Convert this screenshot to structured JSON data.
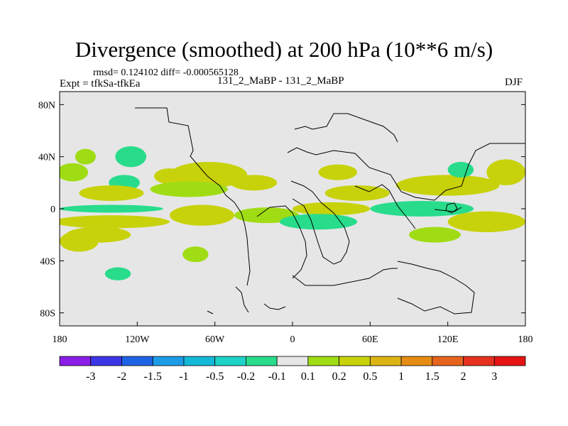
{
  "chart_data": {
    "type": "heatmap",
    "title": "Divergence (smoothed) at 200 hPa (10**6 m/s)",
    "stats_text": "rmsd= 0.124102 diff= -0.000565128",
    "expt_text": "Expt = tfkSa-tfkEa",
    "case_text": "131_2_MaBP - 131_2_MaBP",
    "season": "DJF",
    "x_ticks": [
      "180",
      "120W",
      "60W",
      "0",
      "60E",
      "120E",
      "180"
    ],
    "y_ticks": [
      "80N",
      "40N",
      "0",
      "40S",
      "80S"
    ],
    "xlim": [
      -180,
      180
    ],
    "ylim": [
      -90,
      90
    ],
    "colorbar_labels": [
      "-3",
      "-2",
      "-1.5",
      "-1",
      "-0.5",
      "-0.2",
      "-0.1",
      "0.1",
      "0.2",
      "0.5",
      "1",
      "1.5",
      "2",
      "3"
    ],
    "colorbar_colors": [
      "#8a1ee6",
      "#3c37e6",
      "#1e64e6",
      "#1e9be6",
      "#14b9d7",
      "#1ed2c8",
      "#28dc8c",
      "#e6e6e6",
      "#a0dc14",
      "#c8d20a",
      "#dcb414",
      "#e68c14",
      "#e6641e",
      "#e6321e",
      "#e61414"
    ],
    "field_blobs": [
      {
        "lon": -170,
        "lat": 28,
        "rlon": 12,
        "rlat": 7,
        "value": 0.15
      },
      {
        "lon": -130,
        "lat": 20,
        "rlon": 12,
        "rlat": 6,
        "value": -0.15
      },
      {
        "lon": -65,
        "lat": 26,
        "rlon": 30,
        "rlat": 10,
        "value": 0.2
      },
      {
        "lon": -95,
        "lat": 25,
        "rlon": 12,
        "rlat": 6,
        "value": 0.3
      },
      {
        "lon": -30,
        "lat": 20,
        "rlon": 18,
        "rlat": 6,
        "value": 0.2
      },
      {
        "lon": -140,
        "lat": 12,
        "rlon": 25,
        "rlat": 6,
        "value": 0.2
      },
      {
        "lon": -80,
        "lat": 15,
        "rlon": 30,
        "rlat": 6,
        "value": 0.15
      },
      {
        "lon": -140,
        "lat": 0,
        "rlon": 40,
        "rlat": 3,
        "value": -0.15
      },
      {
        "lon": -140,
        "lat": -10,
        "rlon": 45,
        "rlat": 5,
        "value": 0.2
      },
      {
        "lon": -70,
        "lat": -5,
        "rlon": 25,
        "rlat": 8,
        "value": 0.2
      },
      {
        "lon": -20,
        "lat": -5,
        "rlon": 25,
        "rlat": 6,
        "value": 0.15
      },
      {
        "lon": -150,
        "lat": -20,
        "rlon": 25,
        "rlat": 6,
        "value": 0.2
      },
      {
        "lon": 30,
        "lat": 0,
        "rlon": 30,
        "rlat": 5,
        "value": 0.2
      },
      {
        "lon": 20,
        "lat": -10,
        "rlon": 30,
        "rlat": 6,
        "value": -0.15
      },
      {
        "lon": 50,
        "lat": 12,
        "rlon": 25,
        "rlat": 6,
        "value": 0.2
      },
      {
        "lon": 100,
        "lat": 0,
        "rlon": 40,
        "rlat": 6,
        "value": -0.15
      },
      {
        "lon": 120,
        "lat": 18,
        "rlon": 40,
        "rlat": 8,
        "value": 0.2
      },
      {
        "lon": 150,
        "lat": -10,
        "rlon": 30,
        "rlat": 8,
        "value": 0.2
      },
      {
        "lon": 110,
        "lat": -20,
        "rlon": 20,
        "rlat": 6,
        "value": 0.15
      },
      {
        "lon": 35,
        "lat": 28,
        "rlon": 15,
        "rlat": 6,
        "value": 0.2
      },
      {
        "lon": 165,
        "lat": 28,
        "rlon": 15,
        "rlat": 10,
        "value": 0.2
      },
      {
        "lon": 130,
        "lat": 30,
        "rlon": 10,
        "rlat": 6,
        "value": -0.15
      },
      {
        "lon": -125,
        "lat": 40,
        "rlon": 12,
        "rlat": 8,
        "value": -0.15
      },
      {
        "lon": -160,
        "lat": 40,
        "rlon": 8,
        "rlat": 6,
        "value": 0.15
      },
      {
        "lon": -135,
        "lat": -50,
        "rlon": 10,
        "rlat": 5,
        "value": -0.15
      },
      {
        "lon": -165,
        "lat": -25,
        "rlon": 15,
        "rlat": 8,
        "value": 0.3
      },
      {
        "lon": -75,
        "lat": -35,
        "rlon": 10,
        "rlat": 6,
        "value": 0.15
      }
    ]
  }
}
